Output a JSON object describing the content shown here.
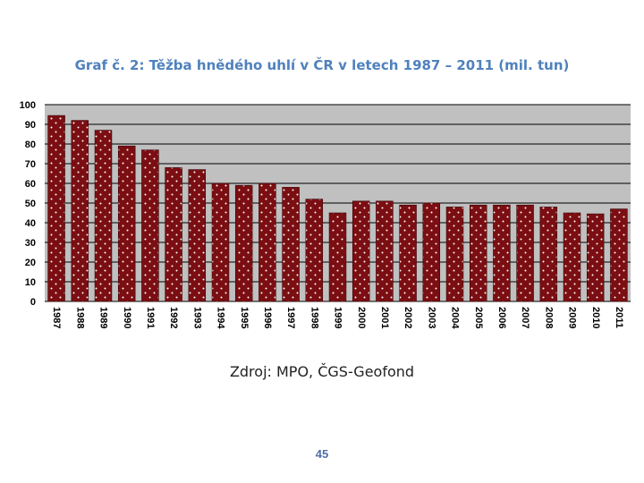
{
  "title": "Graf č. 2: Těžba hnědého uhlí v ČR v letech 1987 – 2011 (mil. tun)",
  "source": "Zdroj: MPO, ČGS-Geofond",
  "page_number": "45",
  "chart_data": {
    "type": "bar",
    "title": "Graf č. 2: Těžba hnědého uhlí v ČR v letech 1987 – 2011 (mil. tun)",
    "xlabel": "",
    "ylabel": "",
    "ylim": [
      0,
      100
    ],
    "yticks": [
      "0",
      "10",
      "20",
      "30",
      "40",
      "50",
      "60",
      "70",
      "80",
      "90",
      "100"
    ],
    "grid": true,
    "legend": "none",
    "colors": {
      "bar": "#7b0e12",
      "plot_bg": "#c0c0c0",
      "dots": "#ffffff"
    },
    "categories": [
      "1987",
      "1988",
      "1989",
      "1990",
      "1991",
      "1992",
      "1993",
      "1994",
      "1995",
      "1996",
      "1997",
      "1998",
      "1999",
      "2000",
      "2001",
      "2002",
      "2003",
      "2004",
      "2005",
      "2006",
      "2007",
      "2008",
      "2009",
      "2010",
      "2011"
    ],
    "values": [
      94.5,
      92,
      87,
      79,
      77,
      68,
      67,
      60,
      59,
      60,
      58,
      52,
      45,
      51,
      51,
      49,
      50,
      48,
      49,
      49,
      49,
      48,
      45,
      44.5,
      47
    ]
  }
}
